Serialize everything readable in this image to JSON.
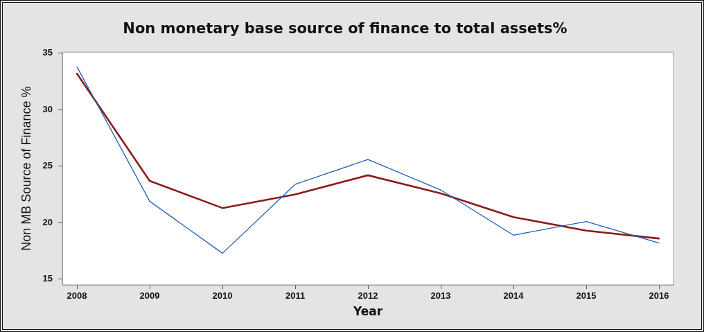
{
  "chart_data": {
    "type": "line",
    "title": "Non monetary base source of finance to total assets%",
    "xlabel": "Year",
    "ylabel": "Non MB Source of Finance %",
    "x": [
      2008,
      2009,
      2010,
      2011,
      2012,
      2013,
      2014,
      2015,
      2016
    ],
    "series": [
      {
        "color": "#1f5fb4",
        "values": [
          33.8,
          21.9,
          17.3,
          23.4,
          25.6,
          22.9,
          18.9,
          20.1,
          18.2
        ]
      },
      {
        "color": "#8b1a1a",
        "values": [
          33.2,
          23.7,
          21.3,
          22.5,
          24.2,
          22.6,
          20.5,
          19.3,
          18.6
        ]
      }
    ],
    "xlim": [
      2007.8,
      2016.2
    ],
    "xticks": [
      2008,
      2009,
      2010,
      2011,
      2012,
      2013,
      2014,
      2015,
      2016
    ],
    "ylim": [
      14.5,
      35.1
    ],
    "yticks": [
      15,
      20,
      25,
      30,
      35
    ],
    "grid": false,
    "legend": false,
    "marker": "none",
    "line_style": "solid"
  }
}
